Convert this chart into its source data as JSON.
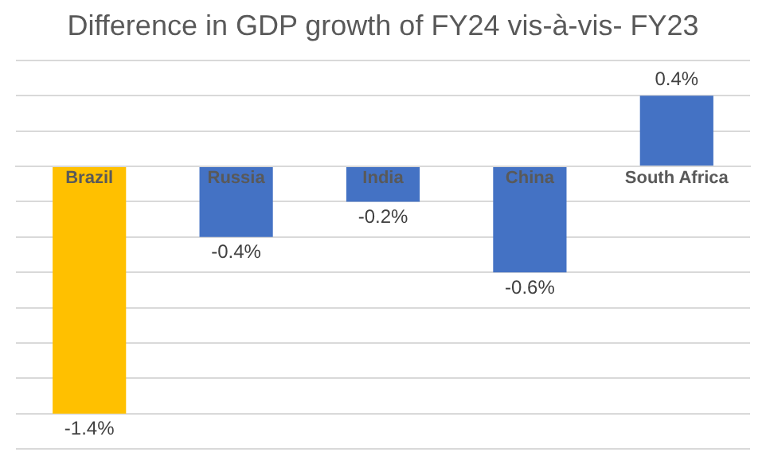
{
  "chart_data": {
    "type": "bar",
    "title": "Difference in GDP growth of FY24 vis-à-vis- FY23",
    "categories": [
      "Brazil",
      "Russia",
      "India",
      "China",
      "South Africa"
    ],
    "values": [
      -1.4,
      -0.4,
      -0.2,
      -0.6,
      0.4
    ],
    "colors": [
      "#ffc000",
      "#4472c4",
      "#4472c4",
      "#4472c4",
      "#4472c4"
    ],
    "value_labels": [
      "-1.4%",
      "-0.4%",
      "-0.2%",
      "-0.6%",
      "0.4%"
    ],
    "ylim": [
      -1.6,
      0.6
    ],
    "yticks": [
      {
        "value": -1.6,
        "label": null
      },
      {
        "value": -1.4,
        "label": null
      },
      {
        "value": -1.2,
        "label": null
      },
      {
        "value": -1.0,
        "label": null
      },
      {
        "value": -0.8,
        "label": null
      },
      {
        "value": -0.6,
        "label": null
      },
      {
        "value": -0.4,
        "label": null
      },
      {
        "value": -0.2,
        "label": null
      },
      {
        "value": 0,
        "label": null
      },
      {
        "value": 0.2,
        "label": null
      },
      {
        "value": 0.4,
        "label": null
      },
      {
        "value": 0.6,
        "label": null
      }
    ],
    "grid": "y",
    "tick_labels": "x"
  }
}
